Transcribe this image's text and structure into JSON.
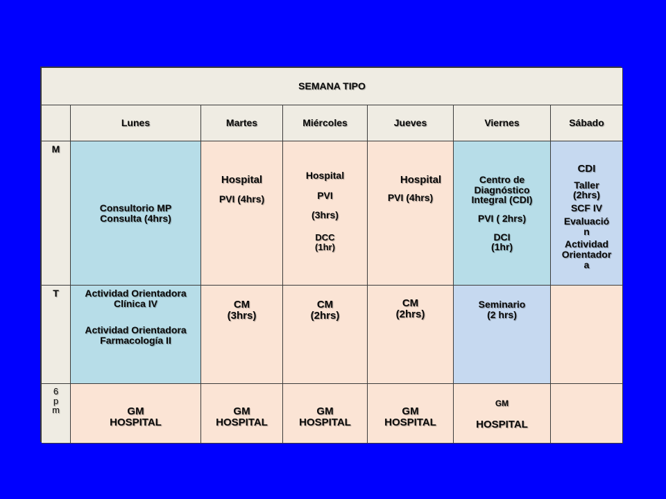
{
  "title": "SEMANA TIPO",
  "days": [
    "Lunes",
    "Martes",
    "Miércoles",
    "Jueves",
    "Viernes",
    "Sábado"
  ],
  "row_labels": {
    "m": "M",
    "t": "T",
    "pm": [
      "6",
      "p",
      "m"
    ]
  },
  "morning": {
    "lunes": [
      "Consultorio MP",
      "Consulta (4hrs)"
    ],
    "martes": [
      "Hospital",
      "PVI (4hrs)"
    ],
    "miercoles": [
      "Hospital",
      "PVI",
      "(3hrs)",
      "DCC",
      "(1hr)"
    ],
    "jueves": [
      "Hospital",
      "PVI (4hrs)"
    ],
    "viernes": [
      "Centro  de",
      "Diagnóstico",
      "Integral (CDI)",
      "PVI ( 2hrs)",
      "DCI",
      "(1hr)"
    ],
    "sabado": [
      "CDI",
      "Taller",
      "(2hrs)",
      "SCF IV",
      "Evaluació",
      "n",
      "Actividad",
      "Orientador",
      "a"
    ]
  },
  "afternoon": {
    "lunes": [
      "Actividad Orientadora",
      "Clínica IV",
      "Actividad Orientadora",
      "Farmacología II"
    ],
    "martes": [
      "CM",
      "(3hrs)"
    ],
    "miercoles": [
      "CM",
      "(2hrs)"
    ],
    "jueves": [
      "CM",
      "(2hrs)"
    ],
    "viernes": [
      "Seminario",
      "(2 hrs)"
    ],
    "sabado": ""
  },
  "evening": {
    "lunes": [
      "GM",
      "HOSPITAL"
    ],
    "martes": [
      "GM",
      "HOSPITAL"
    ],
    "miercoles": [
      "GM",
      "HOSPITAL"
    ],
    "jueves": [
      "GM",
      "HOSPITAL"
    ],
    "viernes": [
      "GM",
      "HOSPITAL"
    ],
    "sabado": ""
  },
  "colors": {
    "background": "#0000ff",
    "header": "#efece3",
    "light_blue": "#b7dde8",
    "peach": "#fbe4d5",
    "lavender": "#c6d9f0"
  }
}
